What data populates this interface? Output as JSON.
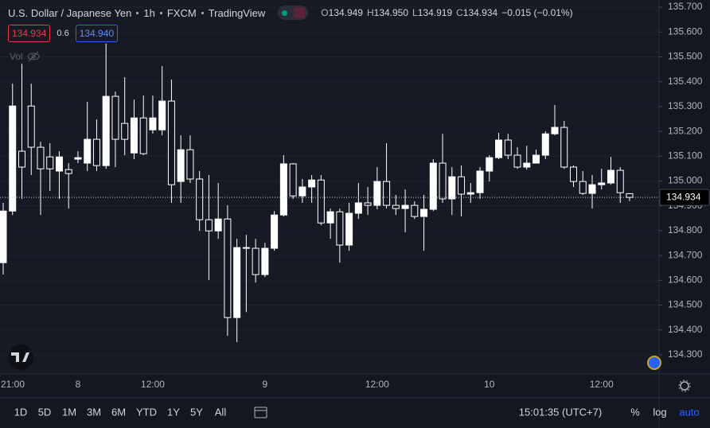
{
  "header": {
    "symbol": "U.S. Dollar / Japanese Yen",
    "interval": "1h",
    "exchange": "FXCM",
    "source": "TradingView",
    "ohlc": [
      {
        "label": "O",
        "value": "134.949"
      },
      {
        "label": "H",
        "value": "134.950"
      },
      {
        "label": "L",
        "value": "134.919"
      },
      {
        "label": "C",
        "value": "134.934"
      }
    ],
    "change": "−0.015 (−0.01%)",
    "bid": "134.934",
    "spread": "0.6",
    "ask": "134.940",
    "volume": "Vol"
  },
  "chart_data": {
    "type": "candlestick",
    "categories": [
      null,
      "21:00",
      null,
      null,
      null,
      null,
      null,
      null,
      "8",
      null,
      null,
      null,
      null,
      null,
      null,
      null,
      "12:00",
      null,
      null,
      null,
      null,
      null,
      null,
      null,
      null,
      null,
      null,
      null,
      "9",
      null,
      null,
      null,
      null,
      null,
      null,
      null,
      null,
      null,
      null,
      null,
      "12:00",
      null,
      null,
      null,
      null,
      null,
      null,
      null,
      null,
      null,
      null,
      null,
      "10",
      null,
      null,
      null,
      null,
      null,
      null,
      null,
      null,
      null,
      null,
      null,
      "12:00",
      null,
      null,
      null
    ],
    "open": [
      134.671,
      134.879,
      135.12,
      135.302,
      135.136,
      135.097,
      135.04,
      135.046,
      135.088,
      135.072,
      135.168,
      135.062,
      135.341,
      135.232,
      135.113,
      135.254,
      135.206,
      135.206,
      135.322,
      134.998,
      135.126,
      135.008,
      134.844,
      134.799,
      134.847,
      134.45,
      134.732,
      134.729,
      134.623,
      134.729,
      134.863,
      135.069,
      134.94,
      134.976,
      135.004,
      134.831,
      134.876,
      134.742,
      134.87,
      134.912,
      134.902,
      134.998,
      134.902,
      134.889,
      134.902,
      134.857,
      134.886,
      135.072,
      134.928,
      135.017,
      134.947,
      134.953,
      135.04,
      135.094,
      135.165,
      135.104,
      135.056,
      135.072,
      135.104,
      135.19,
      135.216,
      135.056,
      134.998,
      134.95,
      134.985,
      134.992,
      135.043,
      134.949
    ],
    "high": [
      134.912,
      135.392,
      135.472,
      135.392,
      135.158,
      135.152,
      135.12,
      135.072,
      135.12,
      135.319,
      135.248,
      135.553,
      135.36,
      135.418,
      135.328,
      135.344,
      135.344,
      135.463,
      135.408,
      135.184,
      135.184,
      135.04,
      135.024,
      134.992,
      134.902,
      134.767,
      134.783,
      134.767,
      134.751,
      134.879,
      135.104,
      135.072,
      135.008,
      135.024,
      135.024,
      134.889,
      134.889,
      134.912,
      134.992,
      134.976,
      135.056,
      135.152,
      134.944,
      134.966,
      134.918,
      134.944,
      135.088,
      135.19,
      135.056,
      135.062,
      134.992,
      135.056,
      135.104,
      135.194,
      135.19,
      135.136,
      135.142,
      135.126,
      135.2,
      135.306,
      135.242,
      135.062,
      135.04,
      135.024,
      135.049,
      135.097,
      135.056,
      134.95
    ],
    "low": [
      134.623,
      134.863,
      134.928,
      135.024,
      134.863,
      134.96,
      134.928,
      134.889,
      135.072,
      135.04,
      135.04,
      135.049,
      135.056,
      135.104,
      135.088,
      135.104,
      135.19,
      135.184,
      134.912,
      134.912,
      134.992,
      134.799,
      134.601,
      134.767,
      134.376,
      134.351,
      134.472,
      134.591,
      134.613,
      134.719,
      134.857,
      134.928,
      134.912,
      134.912,
      134.822,
      134.767,
      134.671,
      134.719,
      134.847,
      134.863,
      134.886,
      134.889,
      134.863,
      134.793,
      134.847,
      134.719,
      134.879,
      134.912,
      134.863,
      134.857,
      134.912,
      134.928,
      134.998,
      135.088,
      135.088,
      135.049,
      135.046,
      135.072,
      135.088,
      135.184,
      135.049,
      134.976,
      134.944,
      134.889,
      134.966,
      134.985,
      134.912,
      134.919
    ],
    "close": [
      134.879,
      135.302,
      135.056,
      135.136,
      135.049,
      135.049,
      135.097,
      135.03,
      135.094,
      135.168,
      135.062,
      135.341,
      135.168,
      135.168,
      135.254,
      135.11,
      135.254,
      135.322,
      134.985,
      135.126,
      135.008,
      134.844,
      134.799,
      134.847,
      134.45,
      134.732,
      134.729,
      134.623,
      134.729,
      134.863,
      135.069,
      134.94,
      134.976,
      135.004,
      134.831,
      134.876,
      134.742,
      134.87,
      134.912,
      134.902,
      134.998,
      134.902,
      134.889,
      134.902,
      134.857,
      134.886,
      135.072,
      134.928,
      135.017,
      134.947,
      134.953,
      135.04,
      135.094,
      135.165,
      135.104,
      135.056,
      135.072,
      135.104,
      135.19,
      135.216,
      135.056,
      134.998,
      134.95,
      134.985,
      134.992,
      135.043,
      134.953,
      134.934
    ],
    "ylim": [
      134.223,
      135.729
    ],
    "yticks": [
      {
        "value": 134.3,
        "label": "134.300"
      },
      {
        "value": 134.4,
        "label": "134.400"
      },
      {
        "value": 134.5,
        "label": "134.500"
      },
      {
        "value": 134.6,
        "label": "134.600"
      },
      {
        "value": 134.7,
        "label": "134.700"
      },
      {
        "value": 134.8,
        "label": "134.800"
      },
      {
        "value": 134.9,
        "label": "134.900"
      },
      {
        "value": 135.0,
        "label": "135.000"
      },
      {
        "value": 135.1,
        "label": "135.100"
      },
      {
        "value": 135.2,
        "label": "135.200"
      },
      {
        "value": 135.3,
        "label": "135.300"
      },
      {
        "value": 135.4,
        "label": "135.400"
      },
      {
        "value": 135.5,
        "label": "135.500"
      },
      {
        "value": 135.6,
        "label": "135.600"
      },
      {
        "value": 135.7,
        "label": "135.700"
      }
    ],
    "last_price": 134.934,
    "up_color": "#ffffff",
    "down_color": "#131722",
    "wick_color": "#ffffff",
    "grid": true
  },
  "toolbar": {
    "ranges": [
      "1D",
      "5D",
      "1M",
      "3M",
      "6M",
      "YTD",
      "1Y",
      "5Y",
      "All"
    ],
    "clock": "15:01:35 (UTC+7)",
    "percent": "%",
    "log": "log",
    "auto": "auto"
  }
}
